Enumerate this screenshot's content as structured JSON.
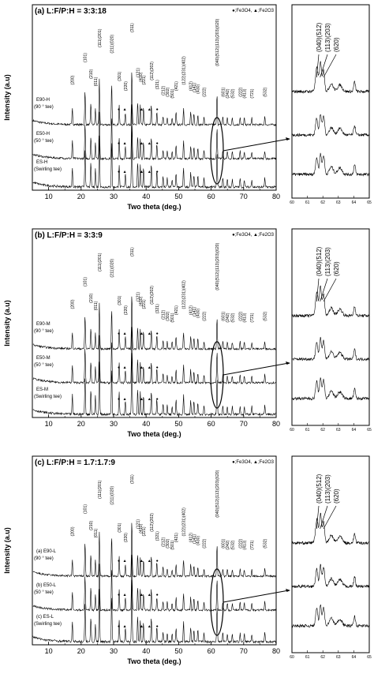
{
  "chart_data": {
    "type": "line",
    "ylabel": "Intensity (a.u)",
    "xlabel": "Two theta (deg.)",
    "legend": "●;Fe3O4, ▲;Fe2O3",
    "xlim": [
      5,
      80
    ],
    "xticks": [
      10,
      20,
      30,
      40,
      50,
      60,
      70,
      80
    ],
    "inset_xlim": [
      60,
      65
    ],
    "inset_xticks": [
      "60",
      "61",
      "62",
      "63",
      "64",
      "65"
    ],
    "inset_peak_labels": [
      "(040)(512)",
      "(113)(203)",
      "(620)"
    ],
    "peaks": [
      {
        "x": 17.3,
        "hkl": "(200)",
        "h": 0.3
      },
      {
        "x": 21.2,
        "hkl": "(101)",
        "h": 0.6
      },
      {
        "x": 23.0,
        "hkl": "(210)",
        "h": 0.38
      },
      {
        "x": 24.4,
        "hkl": "(011)",
        "h": 0.28
      },
      {
        "x": 25.6,
        "hkl": "(111)(201)",
        "h": 0.8
      },
      {
        "x": 29.4,
        "hkl": "(211)(020)",
        "h": 0.72
      },
      {
        "x": 31.7,
        "hkl": "(301)",
        "h": 0.35
      },
      {
        "x": 33.6,
        "hkl": "(220)",
        "h": 0.22
      },
      {
        "x": 35.6,
        "hkl": "(311)",
        "h": 1.0
      },
      {
        "x": 37.4,
        "hkl": "(121)",
        "h": 0.4
      },
      {
        "x": 38.2,
        "hkl": "(410)",
        "h": 0.34
      },
      {
        "x": 39.2,
        "hkl": "(221)",
        "h": 0.3
      },
      {
        "x": 41.6,
        "hkl": "(112)(202)",
        "h": 0.36
      },
      {
        "x": 43.3,
        "hkl": "(321)",
        "h": 0.24
      },
      {
        "x": 45.2,
        "hkl": "(212)",
        "h": 0.16
      },
      {
        "x": 46.5,
        "hkl": "(302)",
        "h": 0.14
      },
      {
        "x": 48.0,
        "hkl": "(501)",
        "h": 0.12
      },
      {
        "x": 49.2,
        "hkl": "(421)",
        "h": 0.22
      },
      {
        "x": 51.5,
        "hkl": "(122)(231)(402)",
        "h": 0.3
      },
      {
        "x": 53.7,
        "hkl": "(412)",
        "h": 0.22
      },
      {
        "x": 54.7,
        "hkl": "(141)",
        "h": 0.2
      },
      {
        "x": 55.9,
        "hkl": "(430)",
        "h": 0.18
      },
      {
        "x": 57.8,
        "hkl": "(222)",
        "h": 0.14
      },
      {
        "x": 61.8,
        "hkl": "(040)(512)(113)(203)(620)",
        "h": 0.55
      },
      {
        "x": 63.6,
        "hkl": "(601)",
        "h": 0.14
      },
      {
        "x": 65.0,
        "hkl": "(242)",
        "h": 0.12
      },
      {
        "x": 66.5,
        "hkl": "(532)",
        "h": 0.12
      },
      {
        "x": 68.9,
        "hkl": "(222)",
        "h": 0.14
      },
      {
        "x": 70.2,
        "hkl": "(413)",
        "h": 0.12
      },
      {
        "x": 72.5,
        "hkl": "(721)",
        "h": 0.12
      },
      {
        "x": 76.5,
        "hkl": "(532)",
        "h": 0.14
      }
    ],
    "panels": [
      {
        "title": "(a) L:F/P:H = 3:3:18",
        "series": [
          {
            "label1": "E90-H",
            "label2": "(90 ° tee)"
          },
          {
            "label1": "E50-H",
            "label2": "(50 ° tee)"
          },
          {
            "label1": "ES-H",
            "label2": "(Swirling tee)"
          }
        ]
      },
      {
        "title": "(b) L:F/P:H = 3:3:9",
        "series": [
          {
            "label1": "E90-M",
            "label2": "(90 ° tee)"
          },
          {
            "label1": "E50-M",
            "label2": "(50 ° tee)"
          },
          {
            "label1": "ES-M",
            "label2": "(Swirling tee)"
          }
        ]
      },
      {
        "title": "(c) L:F/P:H = 1.7:1.7:9",
        "series": [
          {
            "label1": "(a) E90-L",
            "label2": "(90 ° tee)"
          },
          {
            "label1": "(b) E50-L",
            "label2": "(50 ° tee)"
          },
          {
            "label1": "(c) ES-L",
            "label2": "(Swirling tee)"
          }
        ]
      }
    ]
  }
}
